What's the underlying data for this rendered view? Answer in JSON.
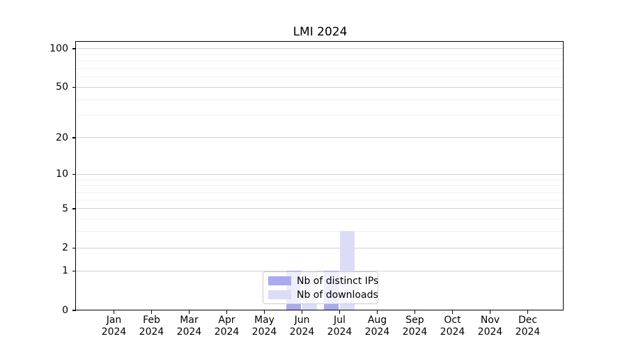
{
  "title": "LMI 2024",
  "chart_data": {
    "type": "bar",
    "title": "LMI 2024",
    "categories": [
      "Jan 2024",
      "Feb 2024",
      "Mar 2024",
      "Apr 2024",
      "May 2024",
      "Jun 2024",
      "Jul 2024",
      "Aug 2024",
      "Sep 2024",
      "Oct 2024",
      "Nov 2024",
      "Dec 2024"
    ],
    "series": [
      {
        "name": "Nb of distinct IPs",
        "color": "#aaaaee",
        "values": [
          0,
          0,
          0,
          0,
          0,
          1,
          1,
          0,
          0,
          0,
          0,
          0
        ]
      },
      {
        "name": "Nb of downloads",
        "color": "#dcdcf8",
        "values": [
          0,
          0,
          0,
          0,
          0,
          1,
          3,
          0,
          0,
          0,
          0,
          0
        ]
      }
    ],
    "xlabel": "",
    "ylabel": "",
    "yscale": "log1p",
    "ylim": [
      0,
      100
    ],
    "y_ticks": [
      0,
      1,
      2,
      5,
      10,
      20,
      50,
      100
    ],
    "y_minor_gridlines": [
      3,
      4,
      6,
      7,
      8,
      9,
      30,
      40,
      60,
      70,
      80,
      90
    ],
    "grid": "horizontal",
    "legend_position": "lower center"
  },
  "colors": {
    "major_grid": "#d2d2d2",
    "minor_grid": "#f0f0f0",
    "spine": "#000000",
    "legend_border": "#cccccc"
  }
}
